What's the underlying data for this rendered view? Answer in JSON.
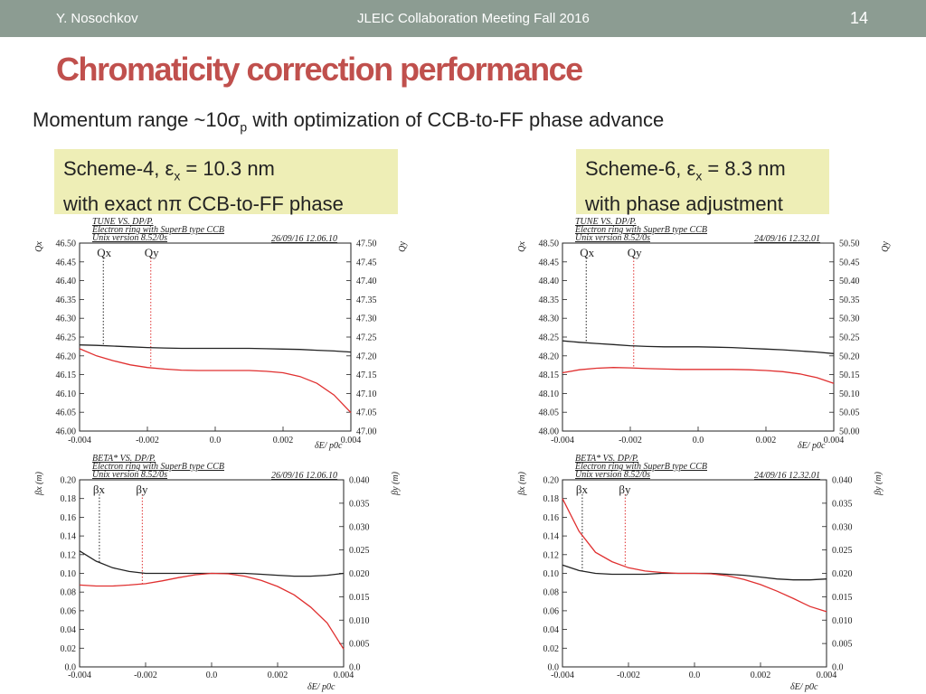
{
  "header": {
    "author": "Y. Nosochkov",
    "meeting": "JLEIC Collaboration Meeting Fall 2016",
    "page": "14"
  },
  "title": "Chromaticity correction performance",
  "subtitle": {
    "pre": "Momentum range ~10",
    "sym": "σ",
    "sub": "p",
    "post": " with optimization of CCB-to-FF phase advance"
  },
  "boxes": [
    {
      "line1_pre": "Scheme-4, ",
      "eps": "ε",
      "sub": "x",
      "line1_post": " = 10.3 nm",
      "line2_pre": "with exact n",
      "pi": "π",
      "line2_post": " CCB-to-FF phase"
    },
    {
      "line1_pre": "Scheme-6, ",
      "eps": "ε",
      "sub": "x",
      "line1_post": " = 8.3 nm",
      "line2_pre": "with phase adjustment",
      "pi": "",
      "line2_post": ""
    }
  ],
  "chart_data": [
    {
      "type": "line",
      "id": "tune-s4",
      "header": [
        "TUNE VS. DP/P.",
        "Electron ring with SuperB type CCB",
        "Unix version 8.52/0s"
      ],
      "date": "26/09/16  12.06.10",
      "ylabel_left": "Qx",
      "ylabel_right": "Qy",
      "xlabel": "δE/ p0c",
      "xlim": [
        -0.004,
        0.004
      ],
      "ylim_left": [
        46.0,
        46.5
      ],
      "ylim_right": [
        47.0,
        47.5
      ],
      "xticks": [
        "-0.004",
        "-0.002",
        "0.0",
        "0.002",
        "0.004"
      ],
      "yticks_left": [
        "46.00",
        "46.05",
        "46.10",
        "46.15",
        "46.20",
        "46.25",
        "46.30",
        "46.35",
        "46.40",
        "46.45",
        "46.50"
      ],
      "yticks_right": [
        "47.00",
        "47.05",
        "47.10",
        "47.15",
        "47.20",
        "47.25",
        "47.30",
        "47.35",
        "47.40",
        "47.45",
        "47.50"
      ],
      "legend": [
        {
          "label": "Qx",
          "x": -0.0033,
          "color": "#222222"
        },
        {
          "label": "Qy",
          "x": -0.0019,
          "color": "#e03030"
        }
      ],
      "series": [
        {
          "name": "Qx",
          "axis": "left",
          "color": "#222222",
          "x": [
            -0.004,
            -0.0035,
            -0.003,
            -0.0025,
            -0.002,
            -0.0015,
            -0.001,
            -0.0005,
            0,
            0.0005,
            0.001,
            0.0015,
            0.002,
            0.0025,
            0.003,
            0.0035,
            0.004
          ],
          "y": [
            46.229,
            46.228,
            46.226,
            46.224,
            46.222,
            46.221,
            46.22,
            46.22,
            46.22,
            46.22,
            46.22,
            46.219,
            46.218,
            46.217,
            46.215,
            46.213,
            46.21
          ]
        },
        {
          "name": "Qy",
          "axis": "right",
          "color": "#e03030",
          "x": [
            -0.004,
            -0.0035,
            -0.003,
            -0.0025,
            -0.002,
            -0.0015,
            -0.001,
            -0.0005,
            0,
            0.0005,
            0.001,
            0.0015,
            0.002,
            0.0025,
            0.003,
            0.0035,
            0.004
          ],
          "y": [
            47.219,
            47.2,
            47.187,
            47.176,
            47.169,
            47.165,
            47.162,
            47.161,
            47.161,
            47.161,
            47.161,
            47.159,
            47.155,
            47.145,
            47.127,
            47.096,
            47.049
          ]
        }
      ]
    },
    {
      "type": "line",
      "id": "tune-s6",
      "header": [
        "TUNE VS. DP/P.",
        "Electron ring with SuperB type CCB",
        "Unix version 8.52/0s"
      ],
      "date": "24/09/16  12.32.01",
      "ylabel_left": "Qx",
      "ylabel_right": "Qy",
      "xlabel": "δE/ p0c",
      "xlim": [
        -0.004,
        0.004
      ],
      "ylim_left": [
        48.0,
        48.5
      ],
      "ylim_right": [
        50.0,
        50.5
      ],
      "xticks": [
        "-0.004",
        "-0.002",
        "0.0",
        "0.002",
        "0.004"
      ],
      "yticks_left": [
        "48.00",
        "48.05",
        "48.10",
        "48.15",
        "48.20",
        "48.25",
        "48.30",
        "48.35",
        "48.40",
        "48.45",
        "48.50"
      ],
      "yticks_right": [
        "50.00",
        "50.05",
        "50.10",
        "50.15",
        "50.20",
        "50.25",
        "50.30",
        "50.35",
        "50.40",
        "50.45",
        "50.50"
      ],
      "legend": [
        {
          "label": "Qx",
          "x": -0.0033,
          "color": "#222222"
        },
        {
          "label": "Qy",
          "x": -0.0019,
          "color": "#e03030"
        }
      ],
      "series": [
        {
          "name": "Qx",
          "axis": "left",
          "color": "#222222",
          "x": [
            -0.004,
            -0.0035,
            -0.003,
            -0.0025,
            -0.002,
            -0.0015,
            -0.001,
            -0.0005,
            0,
            0.0005,
            0.001,
            0.0015,
            0.002,
            0.0025,
            0.003,
            0.0035,
            0.004
          ],
          "y": [
            48.24,
            48.236,
            48.233,
            48.23,
            48.227,
            48.225,
            48.224,
            48.224,
            48.224,
            48.223,
            48.222,
            48.22,
            48.218,
            48.216,
            48.213,
            48.21,
            48.206
          ]
        },
        {
          "name": "Qy",
          "axis": "right",
          "color": "#e03030",
          "x": [
            -0.004,
            -0.0035,
            -0.003,
            -0.0025,
            -0.002,
            -0.0015,
            -0.001,
            -0.0005,
            0,
            0.0005,
            0.001,
            0.0015,
            0.002,
            0.0025,
            0.003,
            0.0035,
            0.004
          ],
          "y": [
            50.155,
            50.163,
            50.167,
            50.169,
            50.168,
            50.166,
            50.165,
            50.164,
            50.164,
            50.164,
            50.164,
            50.163,
            50.161,
            50.158,
            50.152,
            50.142,
            50.127
          ]
        }
      ]
    },
    {
      "type": "line",
      "id": "beta-s4",
      "header": [
        "BETA* VS. DP/P.",
        "Electron ring with SuperB type CCB",
        "Unix version 8.52/0s"
      ],
      "date": "26/09/16  12.06.10",
      "ylabel_left": "βx (m)",
      "ylabel_right": "βy (m)",
      "xlabel": "δE/ p0c",
      "xlim": [
        -0.004,
        0.004
      ],
      "ylim_left": [
        0.0,
        0.2
      ],
      "ylim_right": [
        0.0,
        0.04
      ],
      "xticks": [
        "-0.004",
        "-0.002",
        "0.0",
        "0.002",
        "0.004"
      ],
      "yticks_left": [
        "0.0",
        "0.02",
        "0.04",
        "0.06",
        "0.08",
        "0.10",
        "0.12",
        "0.14",
        "0.16",
        "0.18",
        "0.20"
      ],
      "yticks_right": [
        "0.0",
        "0.005",
        "0.010",
        "0.015",
        "0.020",
        "0.025",
        "0.030",
        "0.035",
        "0.040"
      ],
      "legend": [
        {
          "label": "βx",
          "x": -0.0034,
          "color": "#222222"
        },
        {
          "label": "βy",
          "x": -0.0021,
          "color": "#e03030"
        }
      ],
      "series": [
        {
          "name": "βx",
          "axis": "left",
          "color": "#222222",
          "x": [
            -0.004,
            -0.0035,
            -0.003,
            -0.0025,
            -0.002,
            -0.0015,
            -0.001,
            -0.0005,
            0,
            0.0005,
            0.001,
            0.0015,
            0.002,
            0.0025,
            0.003,
            0.0035,
            0.004
          ],
          "y": [
            0.124,
            0.113,
            0.106,
            0.102,
            0.1,
            0.1,
            0.1,
            0.1,
            0.1,
            0.1,
            0.1,
            0.099,
            0.098,
            0.097,
            0.097,
            0.098,
            0.1
          ]
        },
        {
          "name": "βy",
          "axis": "right",
          "color": "#e03030",
          "x": [
            -0.004,
            -0.0035,
            -0.003,
            -0.0025,
            -0.002,
            -0.0015,
            -0.001,
            -0.0005,
            0,
            0.0005,
            0.001,
            0.0015,
            0.002,
            0.0025,
            0.003,
            0.0035,
            0.004
          ],
          "y": [
            0.0175,
            0.0173,
            0.0173,
            0.0175,
            0.0178,
            0.0184,
            0.0191,
            0.0197,
            0.02,
            0.0199,
            0.0194,
            0.0185,
            0.0172,
            0.0154,
            0.0128,
            0.0094,
            0.0038
          ]
        }
      ]
    },
    {
      "type": "line",
      "id": "beta-s6",
      "header": [
        "BETA* VS. DP/P.",
        "Electron ring with SuperB type CCB",
        "Unix version 8.52/0s"
      ],
      "date": "24/09/16  12.32.01",
      "ylabel_left": "βx (m)",
      "ylabel_right": "βy (m)",
      "xlabel": "δE/ p0c",
      "xlim": [
        -0.004,
        0.004
      ],
      "ylim_left": [
        0.0,
        0.2
      ],
      "ylim_right": [
        0.0,
        0.04
      ],
      "xticks": [
        "-0.004",
        "-0.002",
        "0.0",
        "0.002",
        "0.004"
      ],
      "yticks_left": [
        "0.0",
        "0.02",
        "0.04",
        "0.06",
        "0.08",
        "0.10",
        "0.12",
        "0.14",
        "0.16",
        "0.18",
        "0.20"
      ],
      "yticks_right": [
        "0.0",
        "0.005",
        "0.010",
        "0.015",
        "0.020",
        "0.025",
        "0.030",
        "0.035",
        "0.040"
      ],
      "legend": [
        {
          "label": "βx",
          "x": -0.0034,
          "color": "#222222"
        },
        {
          "label": "βy",
          "x": -0.0021,
          "color": "#e03030"
        }
      ],
      "series": [
        {
          "name": "βx",
          "axis": "left",
          "color": "#222222",
          "x": [
            -0.004,
            -0.0035,
            -0.003,
            -0.0025,
            -0.002,
            -0.0015,
            -0.001,
            -0.0005,
            0,
            0.0005,
            0.001,
            0.0015,
            0.002,
            0.0025,
            0.003,
            0.0035,
            0.004
          ],
          "y": [
            0.109,
            0.103,
            0.1,
            0.099,
            0.099,
            0.099,
            0.1,
            0.1,
            0.1,
            0.1,
            0.099,
            0.098,
            0.096,
            0.094,
            0.093,
            0.093,
            0.094
          ]
        },
        {
          "name": "βy",
          "axis": "right",
          "color": "#e03030",
          "x": [
            -0.004,
            -0.0035,
            -0.003,
            -0.0025,
            -0.002,
            -0.0015,
            -0.001,
            -0.0005,
            0,
            0.0005,
            0.001,
            0.0015,
            0.002,
            0.0025,
            0.003,
            0.0035,
            0.004
          ],
          "y": [
            0.036,
            0.029,
            0.0245,
            0.0225,
            0.0212,
            0.0205,
            0.0202,
            0.02,
            0.02,
            0.0199,
            0.0195,
            0.0187,
            0.0176,
            0.0162,
            0.0146,
            0.0129,
            0.0118
          ]
        }
      ]
    }
  ]
}
